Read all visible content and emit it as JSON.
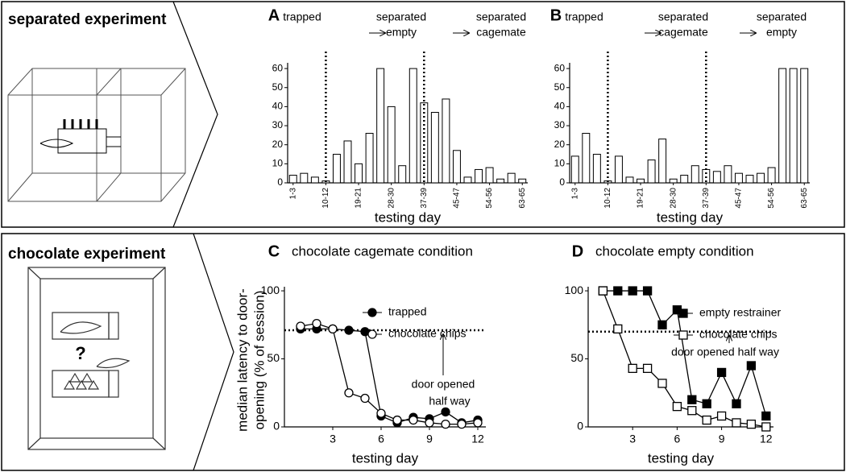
{
  "panels": [
    {
      "title": "separated experiment"
    },
    {
      "title": "chocolate experiment",
      "symbol": "?"
    }
  ],
  "chart_data": [
    {
      "type": "bar",
      "label": "A",
      "phases": [
        [
          "trapped"
        ],
        [
          "separated",
          "empty"
        ],
        [
          "separated",
          "cagemate"
        ]
      ],
      "categories": [
        "1-3",
        null,
        null,
        "10-12",
        null,
        null,
        "19-21",
        null,
        null,
        "28-30",
        null,
        null,
        "37-39",
        null,
        null,
        "45-47",
        null,
        null,
        "54-56",
        null,
        null,
        "63-65"
      ],
      "values": [
        4,
        5,
        3,
        1,
        15,
        22,
        10,
        26,
        60,
        40,
        9,
        60,
        42,
        37,
        44,
        17,
        3,
        7,
        8,
        2,
        5,
        2
      ],
      "color": "#ffffff",
      "ylim": [
        0,
        63
      ],
      "yticks": [
        0,
        10,
        20,
        30,
        40,
        50,
        60
      ],
      "xlabel": "testing day"
    },
    {
      "type": "bar",
      "label": "B",
      "phases": [
        [
          "trapped"
        ],
        [
          "separated",
          "cagemate"
        ],
        [
          "separated",
          "empty"
        ]
      ],
      "categories": [
        "1-3",
        null,
        null,
        "10-12",
        null,
        null,
        "19-21",
        null,
        null,
        "28-30",
        null,
        null,
        "37-39",
        null,
        null,
        "45-47",
        null,
        null,
        "54-56",
        null,
        null,
        "63-65"
      ],
      "values": [
        14,
        26,
        15,
        1,
        14,
        3,
        2,
        12,
        23,
        2,
        4,
        9,
        7,
        6,
        9,
        5,
        4,
        5,
        8,
        60,
        60,
        60
      ],
      "color": "#ffffff",
      "ylim": [
        0,
        63
      ],
      "yticks": [
        0,
        10,
        20,
        30,
        40,
        50,
        60
      ],
      "xlabel": "testing day"
    },
    {
      "type": "line",
      "label": "C",
      "title": "chocolate cagemate condition",
      "marker": "circle",
      "ylabel": [
        "median latency to door-",
        "opening (% of session)"
      ],
      "xlabel": "testing day",
      "x": [
        1,
        2,
        3,
        4,
        5,
        6,
        7,
        8,
        9,
        10,
        11,
        12
      ],
      "series": [
        {
          "name": "trapped",
          "color": "#000000",
          "values": [
            72,
            72,
            72,
            71,
            70,
            8,
            3,
            7,
            6,
            11,
            3,
            5
          ]
        },
        {
          "name": "chocolate chips",
          "color": "#ffffff",
          "values": [
            74,
            76,
            72,
            25,
            21,
            10,
            5,
            5,
            3,
            2,
            2,
            3
          ]
        }
      ],
      "reference": 71,
      "annotation": [
        "door opened",
        "half way"
      ],
      "xlim": [
        0,
        12.5
      ],
      "xticks": [
        3,
        6,
        9,
        12
      ],
      "ylim": [
        0,
        103
      ],
      "yticks": [
        0,
        50,
        100
      ]
    },
    {
      "type": "line",
      "label": "D",
      "title": "chocolate empty condition",
      "marker": "square",
      "xlabel": "testing day",
      "x": [
        1,
        2,
        3,
        4,
        5,
        6,
        7,
        8,
        9,
        10,
        11,
        12
      ],
      "series": [
        {
          "name": "empty restrainer",
          "color": "#000000",
          "values": [
            100,
            100,
            100,
            100,
            75,
            86,
            20,
            17,
            40,
            17,
            45,
            8
          ]
        },
        {
          "name": "chocolate chips",
          "color": "#ffffff",
          "values": [
            100,
            72,
            43,
            43,
            32,
            15,
            12,
            5,
            8,
            3,
            2,
            0
          ]
        }
      ],
      "reference": 70,
      "annotation": [
        "door opened half way"
      ],
      "xlim": [
        0,
        12.5
      ],
      "xticks": [
        3,
        6,
        9,
        12
      ],
      "ylim": [
        0,
        103
      ],
      "yticks": [
        0,
        50,
        100
      ]
    }
  ]
}
